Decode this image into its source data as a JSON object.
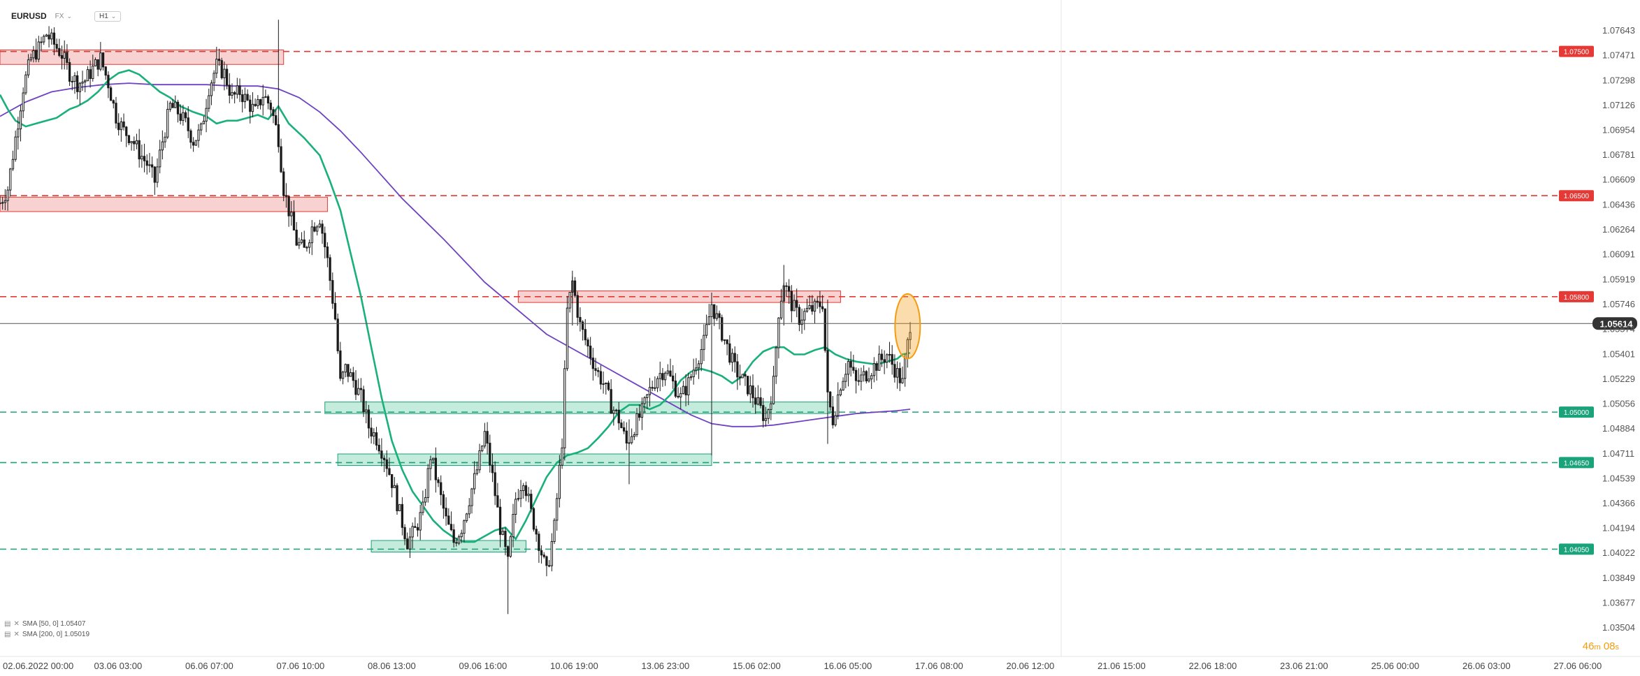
{
  "toolbar": {
    "symbol": "EURUSD",
    "market": "FX",
    "timeframe": "H1"
  },
  "legend": {
    "sma50": "SMA [50, 0] 1.05407",
    "sma200": "SMA [200, 0] 1.05019"
  },
  "countdown": {
    "minutes": "46",
    "m_unit": "m",
    "seconds": "08",
    "s_unit": "s"
  },
  "colors": {
    "candle_up": "#1a1a1a",
    "candle_down": "#1a1a1a",
    "resistance": "#e53935",
    "resistance_fill": "#f7c9c9",
    "support": "#1aa37a",
    "support_fill": "#b9e9d6",
    "sma50": "#19b07a",
    "sma200": "#6f42c1",
    "highlight": "#f39c12",
    "current_price_badge": "#333333"
  },
  "chart_data": {
    "type": "candlestick",
    "symbol": "EURUSD",
    "timeframe": "H1",
    "ylim": [
      1.035,
      1.0775
    ],
    "y_ticks": [
      "1.07643",
      "1.07471",
      "1.07298",
      "1.07126",
      "1.06954",
      "1.06781",
      "1.06609",
      "1.06436",
      "1.06264",
      "1.06091",
      "1.05919",
      "1.05746",
      "1.05574",
      "1.05401",
      "1.05229",
      "1.05056",
      "1.04884",
      "1.04711",
      "1.04539",
      "1.04366",
      "1.04194",
      "1.04022",
      "1.03849",
      "1.03677",
      "1.03504"
    ],
    "x_ticks": [
      "02.06.2022 00:00",
      "03.06 03:00",
      "06.06 07:00",
      "07.06 10:00",
      "08.06 13:00",
      "09.06 16:00",
      "10.06 19:00",
      "13.06 23:00",
      "15.06 02:00",
      "16.06 05:00",
      "17.06 08:00",
      "20.06 12:00",
      "21.06 15:00",
      "22.06 18:00",
      "23.06 21:00",
      "25.06 00:00",
      "26.06 03:00",
      "27.06 06:00"
    ],
    "current_price": "1.05614",
    "close_path": [
      [
        0,
        1.0645
      ],
      [
        3,
        1.0655
      ],
      [
        6,
        1.069
      ],
      [
        9,
        1.0725
      ],
      [
        12,
        1.0745
      ],
      [
        15,
        1.0752
      ],
      [
        18,
        1.0762
      ],
      [
        21,
        1.0755
      ],
      [
        24,
        1.0748
      ],
      [
        27,
        1.0735
      ],
      [
        30,
        1.0728
      ],
      [
        33,
        1.073
      ],
      [
        36,
        1.0738
      ],
      [
        39,
        1.0745
      ],
      [
        42,
        1.0728
      ],
      [
        45,
        1.0705
      ],
      [
        48,
        1.0695
      ],
      [
        51,
        1.069
      ],
      [
        54,
        1.068
      ],
      [
        57,
        1.0672
      ],
      [
        60,
        1.066
      ],
      [
        63,
        1.0688
      ],
      [
        66,
        1.0712
      ],
      [
        69,
        1.0708
      ],
      [
        72,
        1.07
      ],
      [
        75,
        1.0688
      ],
      [
        78,
        1.0695
      ],
      [
        81,
        1.0725
      ],
      [
        84,
        1.074
      ],
      [
        87,
        1.0735
      ],
      [
        90,
        1.0718
      ],
      [
        93,
        1.0722
      ],
      [
        96,
        1.0715
      ],
      [
        99,
        1.0708
      ],
      [
        102,
        1.072
      ],
      [
        105,
        1.0712
      ],
      [
        108,
        1.069
      ],
      [
        110,
        1.0655
      ],
      [
        112,
        1.064
      ],
      [
        115,
        1.0618
      ],
      [
        118,
        1.0612
      ],
      [
        121,
        1.0628
      ],
      [
        124,
        1.0635
      ],
      [
        127,
        1.0605
      ],
      [
        130,
        1.0565
      ],
      [
        132,
        1.052
      ],
      [
        134,
        1.053
      ],
      [
        137,
        1.0522
      ],
      [
        140,
        1.051
      ],
      [
        143,
        1.049
      ],
      [
        146,
        1.0482
      ],
      [
        149,
        1.047
      ],
      [
        152,
        1.0452
      ],
      [
        155,
        1.043
      ],
      [
        158,
        1.041
      ],
      [
        161,
        1.0418
      ],
      [
        164,
        1.0432
      ],
      [
        167,
        1.047
      ],
      [
        170,
        1.0448
      ],
      [
        173,
        1.0425
      ],
      [
        176,
        1.041
      ],
      [
        179,
        1.042
      ],
      [
        182,
        1.044
      ],
      [
        185,
        1.046
      ],
      [
        188,
        1.0485
      ],
      [
        191,
        1.0455
      ],
      [
        194,
        1.042
      ],
      [
        197,
        1.0395
      ],
      [
        200,
        1.044
      ],
      [
        203,
        1.0455
      ],
      [
        206,
        1.043
      ],
      [
        209,
        1.041
      ],
      [
        212,
        1.0388
      ],
      [
        215,
        1.042
      ],
      [
        218,
        1.048
      ],
      [
        220,
        1.057
      ],
      [
        222,
        1.059
      ],
      [
        225,
        1.056
      ],
      [
        228,
        1.0545
      ],
      [
        231,
        1.053
      ],
      [
        234,
        1.052
      ],
      [
        237,
        1.0505
      ],
      [
        240,
        1.0495
      ],
      [
        243,
        1.0478
      ],
      [
        246,
        1.049
      ],
      [
        249,
        1.05
      ],
      [
        252,
        1.0515
      ],
      [
        255,
        1.0525
      ],
      [
        258,
        1.053
      ],
      [
        261,
        1.052
      ],
      [
        264,
        1.051
      ],
      [
        267,
        1.052
      ],
      [
        270,
        1.0535
      ],
      [
        273,
        1.0548
      ],
      [
        276,
        1.0575
      ],
      [
        279,
        1.056
      ],
      [
        282,
        1.0545
      ],
      [
        285,
        1.053
      ],
      [
        288,
        1.0522
      ],
      [
        291,
        1.0515
      ],
      [
        294,
        1.0505
      ],
      [
        297,
        1.0495
      ],
      [
        300,
        1.052
      ],
      [
        302,
        1.057
      ],
      [
        304,
        1.059
      ],
      [
        307,
        1.0575
      ],
      [
        310,
        1.0565
      ],
      [
        313,
        1.057
      ],
      [
        316,
        1.0572
      ],
      [
        319,
        1.0576
      ],
      [
        321,
        1.051
      ],
      [
        323,
        1.0495
      ],
      [
        326,
        1.052
      ],
      [
        329,
        1.0535
      ],
      [
        332,
        1.052
      ],
      [
        335,
        1.0525
      ],
      [
        338,
        1.053
      ],
      [
        341,
        1.0535
      ],
      [
        344,
        1.054
      ],
      [
        347,
        1.053
      ],
      [
        350,
        1.052
      ],
      [
        353,
        1.0561
      ]
    ],
    "resistance_lines": [
      {
        "label": "1.07500",
        "y": 1.075
      },
      {
        "label": "1.06500",
        "y": 1.065
      },
      {
        "label": "1.05800",
        "y": 1.058
      }
    ],
    "support_lines": [
      {
        "label": "1.05000",
        "y": 1.05
      },
      {
        "label": "1.04650",
        "y": 1.0465
      },
      {
        "label": "1.04050",
        "y": 1.0405
      }
    ],
    "resistance_zones": [
      {
        "x0": 0,
        "x1": 110,
        "y0": 1.0741,
        "y1": 1.0751
      },
      {
        "x0": 0,
        "x1": 127,
        "y0": 1.0639,
        "y1": 1.0649
      },
      {
        "x0": 201,
        "x1": 326,
        "y0": 1.0576,
        "y1": 1.0584
      }
    ],
    "support_zones": [
      {
        "x0": 126,
        "x1": 322,
        "y0": 1.0499,
        "y1": 1.0507
      },
      {
        "x0": 131,
        "x1": 276,
        "y0": 1.0463,
        "y1": 1.0471
      },
      {
        "x0": 144,
        "x1": 204,
        "y0": 1.0403,
        "y1": 1.0411
      }
    ],
    "sma50_path": [
      [
        0,
        1.072
      ],
      [
        3,
        1.071
      ],
      [
        6,
        1.0702
      ],
      [
        10,
        1.0698
      ],
      [
        14,
        1.07
      ],
      [
        18,
        1.0702
      ],
      [
        22,
        1.0704
      ],
      [
        27,
        1.071
      ],
      [
        30,
        1.0712
      ],
      [
        34,
        1.0716
      ],
      [
        38,
        1.0722
      ],
      [
        42,
        1.073
      ],
      [
        46,
        1.0735
      ],
      [
        50,
        1.0737
      ],
      [
        54,
        1.0734
      ],
      [
        58,
        1.0728
      ],
      [
        62,
        1.0722
      ],
      [
        66,
        1.0718
      ],
      [
        70,
        1.0712
      ],
      [
        75,
        1.0708
      ],
      [
        80,
        1.0705
      ],
      [
        84,
        1.07
      ],
      [
        88,
        1.0702
      ],
      [
        92,
        1.0702
      ],
      [
        96,
        1.0704
      ],
      [
        100,
        1.0706
      ],
      [
        104,
        1.0703
      ],
      [
        108,
        1.0712
      ],
      [
        112,
        1.07
      ],
      [
        118,
        1.069
      ],
      [
        124,
        1.0678
      ],
      [
        128,
        1.066
      ],
      [
        132,
        1.064
      ],
      [
        136,
        1.061
      ],
      [
        140,
        1.058
      ],
      [
        144,
        1.0545
      ],
      [
        148,
        1.051
      ],
      [
        152,
        1.048
      ],
      [
        156,
        1.046
      ],
      [
        160,
        1.0445
      ],
      [
        164,
        1.0435
      ],
      [
        168,
        1.0425
      ],
      [
        172,
        1.0418
      ],
      [
        176,
        1.0413
      ],
      [
        180,
        1.041
      ],
      [
        184,
        1.041
      ],
      [
        188,
        1.0414
      ],
      [
        192,
        1.0418
      ],
      [
        196,
        1.042
      ],
      [
        200,
        1.0412
      ],
      [
        204,
        1.0425
      ],
      [
        208,
        1.044
      ],
      [
        212,
        1.0455
      ],
      [
        216,
        1.0465
      ],
      [
        220,
        1.047
      ],
      [
        224,
        1.0472
      ],
      [
        228,
        1.0475
      ],
      [
        232,
        1.0482
      ],
      [
        236,
        1.049
      ],
      [
        240,
        1.05
      ],
      [
        244,
        1.0505
      ],
      [
        248,
        1.0505
      ],
      [
        252,
        1.0502
      ],
      [
        256,
        1.0505
      ],
      [
        260,
        1.0512
      ],
      [
        264,
        1.0522
      ],
      [
        268,
        1.0528
      ],
      [
        272,
        1.053
      ],
      [
        276,
        1.0528
      ],
      [
        280,
        1.0525
      ],
      [
        284,
        1.052
      ],
      [
        288,
        1.0525
      ],
      [
        292,
        1.0535
      ],
      [
        296,
        1.0542
      ],
      [
        300,
        1.0545
      ],
      [
        304,
        1.0545
      ],
      [
        308,
        1.054
      ],
      [
        312,
        1.054
      ],
      [
        316,
        1.0543
      ],
      [
        320,
        1.0545
      ],
      [
        324,
        1.054
      ],
      [
        328,
        1.0537
      ],
      [
        332,
        1.0535
      ],
      [
        336,
        1.0534
      ],
      [
        340,
        1.0533
      ],
      [
        344,
        1.0535
      ],
      [
        348,
        1.0537
      ],
      [
        350,
        1.054
      ],
      [
        353,
        1.0541
      ]
    ],
    "sma200_path": [
      [
        0,
        1.0705
      ],
      [
        10,
        1.0715
      ],
      [
        20,
        1.0722
      ],
      [
        30,
        1.0725
      ],
      [
        40,
        1.0727
      ],
      [
        50,
        1.0728
      ],
      [
        60,
        1.0727
      ],
      [
        70,
        1.0727
      ],
      [
        80,
        1.0727
      ],
      [
        90,
        1.0726
      ],
      [
        100,
        1.0726
      ],
      [
        108,
        1.0724
      ],
      [
        116,
        1.0718
      ],
      [
        124,
        1.0708
      ],
      [
        132,
        1.0695
      ],
      [
        140,
        1.068
      ],
      [
        148,
        1.0664
      ],
      [
        156,
        1.0648
      ],
      [
        164,
        1.0634
      ],
      [
        172,
        1.062
      ],
      [
        180,
        1.0605
      ],
      [
        188,
        1.059
      ],
      [
        196,
        1.0578
      ],
      [
        204,
        1.0566
      ],
      [
        212,
        1.0554
      ],
      [
        220,
        1.0546
      ],
      [
        228,
        1.0538
      ],
      [
        236,
        1.053
      ],
      [
        244,
        1.0522
      ],
      [
        252,
        1.0514
      ],
      [
        260,
        1.0506
      ],
      [
        268,
        1.0498
      ],
      [
        276,
        1.0492
      ],
      [
        284,
        1.049
      ],
      [
        292,
        1.049
      ],
      [
        300,
        1.0491
      ],
      [
        308,
        1.0493
      ],
      [
        316,
        1.0495
      ],
      [
        324,
        1.0497
      ],
      [
        332,
        1.0499
      ],
      [
        340,
        1.05
      ],
      [
        348,
        1.0501
      ],
      [
        353,
        1.0502
      ]
    ],
    "highlight": {
      "x": 352,
      "y0": 1.054,
      "y1": 1.0579
    }
  }
}
